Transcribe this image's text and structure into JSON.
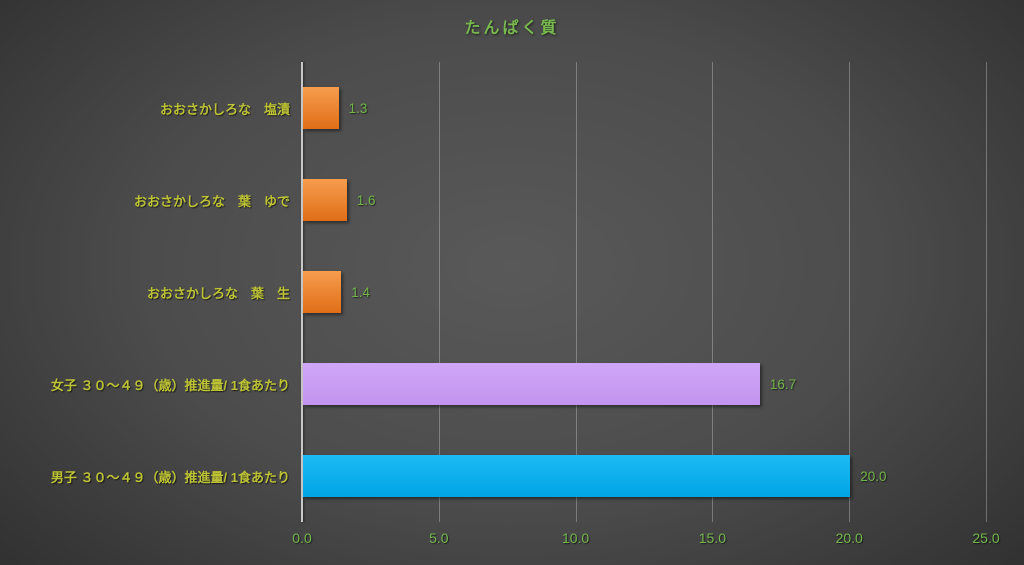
{
  "chart_data": {
    "type": "bar",
    "orientation": "horizontal",
    "title": "たんぱく質",
    "categories": [
      "おおさかしろな　塩漬",
      "おおさかしろな　葉　ゆで",
      "おおさかしろな　葉　生",
      "女子 ３０～４９（歳）推進量/ 1食あたり",
      "男子 ３０～４９（歳）推進量/ 1食あたり"
    ],
    "values": [
      1.3,
      1.6,
      1.4,
      16.7,
      20.0
    ],
    "value_labels": [
      "1.3",
      "1.6",
      "1.4",
      "16.7",
      "20.0"
    ],
    "bar_colors": [
      "#ED7D31",
      "#ED7D31",
      "#ED7D31",
      "#C9A1F3",
      "#00B0F0"
    ],
    "bar_gradients": [
      [
        "#F69D4D",
        "#E06E18"
      ],
      [
        "#F69D4D",
        "#E06E18"
      ],
      [
        "#F69D4D",
        "#E06E18"
      ],
      [
        "#CFA7F8",
        "#C394EE"
      ],
      [
        "#1CBAF4",
        "#00A5E5"
      ]
    ],
    "xlabel": "",
    "ylabel": "",
    "xlim": [
      0,
      25
    ],
    "x_ticks": [
      "0.0",
      "5.0",
      "10.0",
      "15.0",
      "20.0",
      "25.0"
    ],
    "grid": true,
    "legend": false
  },
  "colors": {
    "background_center": "#595959",
    "background_edge": "#242424",
    "title_text": "#77B94E",
    "category_text": "#BDC335",
    "value_text": "#72B548",
    "tick_text": "#74B84C",
    "axis_line": "#C8C8C8",
    "gridline": "#CDCDCD"
  }
}
